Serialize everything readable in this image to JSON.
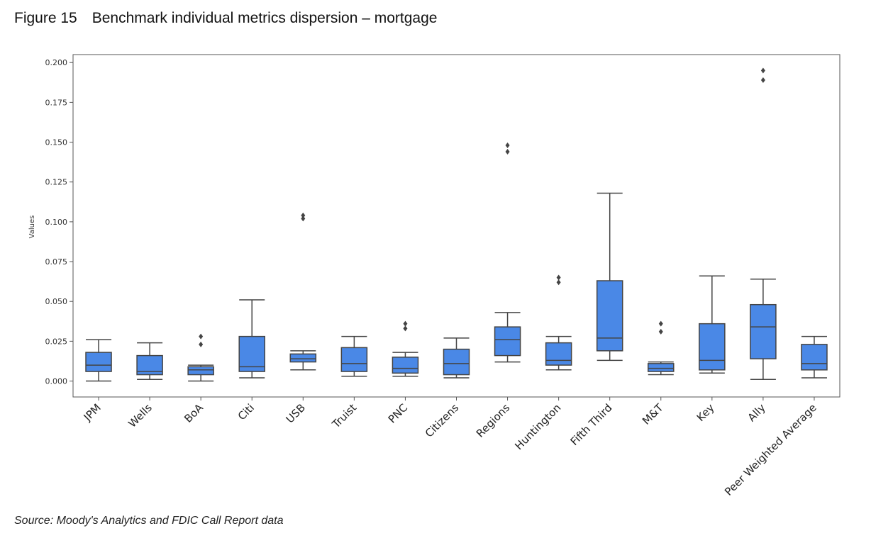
{
  "figure": {
    "title": "Figure 15 Benchmark individual metrics dispersion – mortgage",
    "source": "Source: Moody's Analytics and FDIC Call Report data"
  },
  "colors": {
    "box_fill": "#4a88e6",
    "line": "#444444",
    "axes": "#555555"
  },
  "chart_data": {
    "type": "box",
    "ylabel": "Values",
    "ylim": [
      -0.01,
      0.205
    ],
    "yticks": [
      0.0,
      0.025,
      0.05,
      0.075,
      0.1,
      0.125,
      0.15,
      0.175,
      0.2
    ],
    "ytick_labels": [
      "0.000",
      "0.025",
      "0.050",
      "0.075",
      "0.100",
      "0.125",
      "0.150",
      "0.175",
      "0.200"
    ],
    "grid": false,
    "categories": [
      "JPM",
      "Wells",
      "BoA",
      "Citi",
      "USB",
      "Truist",
      "PNC",
      "Citizens",
      "Regions",
      "Huntington",
      "Fifth Third",
      "M&T",
      "Key",
      "Ally",
      "Peer Weighted Average"
    ],
    "boxes": [
      {
        "whisker_low": 0.0,
        "q1": 0.006,
        "median": 0.01,
        "q3": 0.018,
        "whisker_high": 0.026,
        "outliers": []
      },
      {
        "whisker_low": 0.001,
        "q1": 0.004,
        "median": 0.006,
        "q3": 0.016,
        "whisker_high": 0.024,
        "outliers": []
      },
      {
        "whisker_low": 0.0,
        "q1": 0.004,
        "median": 0.007,
        "q3": 0.009,
        "whisker_high": 0.01,
        "outliers": [
          0.023,
          0.028
        ]
      },
      {
        "whisker_low": 0.002,
        "q1": 0.006,
        "median": 0.009,
        "q3": 0.028,
        "whisker_high": 0.051,
        "outliers": []
      },
      {
        "whisker_low": 0.007,
        "q1": 0.012,
        "median": 0.014,
        "q3": 0.017,
        "whisker_high": 0.019,
        "outliers": [
          0.102,
          0.104
        ]
      },
      {
        "whisker_low": 0.003,
        "q1": 0.006,
        "median": 0.011,
        "q3": 0.021,
        "whisker_high": 0.028,
        "outliers": []
      },
      {
        "whisker_low": 0.003,
        "q1": 0.005,
        "median": 0.008,
        "q3": 0.015,
        "whisker_high": 0.018,
        "outliers": [
          0.033,
          0.036
        ]
      },
      {
        "whisker_low": 0.002,
        "q1": 0.004,
        "median": 0.011,
        "q3": 0.02,
        "whisker_high": 0.027,
        "outliers": []
      },
      {
        "whisker_low": 0.012,
        "q1": 0.016,
        "median": 0.026,
        "q3": 0.034,
        "whisker_high": 0.043,
        "outliers": [
          0.144,
          0.148
        ]
      },
      {
        "whisker_low": 0.007,
        "q1": 0.01,
        "median": 0.013,
        "q3": 0.024,
        "whisker_high": 0.028,
        "outliers": [
          0.062,
          0.065
        ]
      },
      {
        "whisker_low": 0.013,
        "q1": 0.019,
        "median": 0.027,
        "q3": 0.063,
        "whisker_high": 0.118,
        "outliers": []
      },
      {
        "whisker_low": 0.004,
        "q1": 0.006,
        "median": 0.008,
        "q3": 0.011,
        "whisker_high": 0.012,
        "outliers": [
          0.031,
          0.036
        ]
      },
      {
        "whisker_low": 0.005,
        "q1": 0.007,
        "median": 0.013,
        "q3": 0.036,
        "whisker_high": 0.066,
        "outliers": []
      },
      {
        "whisker_low": 0.001,
        "q1": 0.014,
        "median": 0.034,
        "q3": 0.048,
        "whisker_high": 0.064,
        "outliers": [
          0.189,
          0.195
        ]
      },
      {
        "whisker_low": 0.002,
        "q1": 0.007,
        "median": 0.011,
        "q3": 0.023,
        "whisker_high": 0.028,
        "outliers": []
      }
    ]
  }
}
